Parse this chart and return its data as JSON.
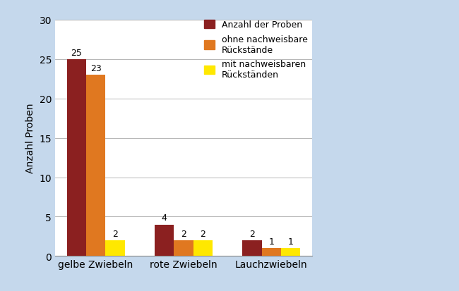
{
  "categories": [
    "gelbe Zwiebeln",
    "rote Zwiebeln",
    "Lauchzwiebeln"
  ],
  "series": {
    "Anzahl der Proben": [
      25,
      4,
      2
    ],
    "ohne nachweisbare\nRückstände": [
      23,
      2,
      1
    ],
    "mit nachweisbaren\nRückständen": [
      2,
      2,
      1
    ]
  },
  "colors": {
    "Anzahl der Proben": "#8B2020",
    "ohne nachweisbare\nRückstände": "#E07820",
    "mit nachweisbaren\nRückständen": "#FFE800"
  },
  "legend_labels": [
    "Anzahl der Proben",
    "ohne nachweisbare\nRückstände",
    "mit nachweisbaren\nRückständen"
  ],
  "ylabel": "Anzahl Proben",
  "ylim": [
    0,
    30
  ],
  "yticks": [
    0,
    5,
    10,
    15,
    20,
    25,
    30
  ],
  "background_color": "#C5D8EC",
  "plot_bg_color": "#FFFFFF",
  "bar_width": 0.22,
  "label_fontsize": 9,
  "tick_fontsize": 10,
  "ylabel_fontsize": 10
}
